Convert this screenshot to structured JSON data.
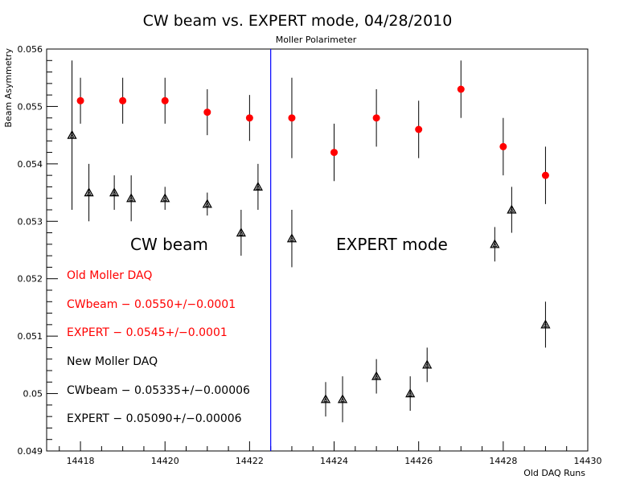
{
  "chart_data": {
    "type": "scatter",
    "title": "CW beam vs. EXPERT mode, 04/28/2010",
    "subtitle": "Moller Polarimeter",
    "xlabel": "Old DAQ Runs",
    "ylabel": "Beam Asymmetry",
    "xlim": [
      14417.2,
      14430
    ],
    "ylim": [
      0.049,
      0.056
    ],
    "x_ticks": [
      "14418",
      "14420",
      "14422",
      "14424",
      "14426",
      "14428",
      "14430"
    ],
    "y_ticks": [
      "0.049",
      "0.05",
      "0.051",
      "0.052",
      "0.053",
      "0.054",
      "0.055",
      "0.056"
    ],
    "x_tick_values": [
      14418,
      14420,
      14422,
      14424,
      14426,
      14428,
      14430
    ],
    "y_tick_values": [
      0.049,
      0.05,
      0.051,
      0.052,
      0.053,
      0.054,
      0.055,
      0.056
    ],
    "divider_x": 14422.5,
    "divider_color": "#0000ff",
    "series": [
      {
        "marker": "circle",
        "color": "#ff0000",
        "points": [
          {
            "x": 14418,
            "y": 0.0551,
            "err": 0.0004
          },
          {
            "x": 14419,
            "y": 0.0551,
            "err": 0.0004
          },
          {
            "x": 14420,
            "y": 0.0551,
            "err": 0.0004
          },
          {
            "x": 14421,
            "y": 0.0549,
            "err": 0.0004
          },
          {
            "x": 14422,
            "y": 0.0548,
            "err": 0.0004
          },
          {
            "x": 14423,
            "y": 0.0548,
            "err": 0.0007
          },
          {
            "x": 14424,
            "y": 0.0542,
            "err": 0.0005
          },
          {
            "x": 14425,
            "y": 0.0548,
            "err": 0.0005
          },
          {
            "x": 14426,
            "y": 0.0546,
            "err": 0.0005
          },
          {
            "x": 14427,
            "y": 0.0553,
            "err": 0.0005
          },
          {
            "x": 14428,
            "y": 0.0543,
            "err": 0.0005
          },
          {
            "x": 14429,
            "y": 0.0538,
            "err": 0.0005
          }
        ]
      },
      {
        "marker": "triangle",
        "color": "#000000",
        "points": [
          {
            "x": 14417.8,
            "y": 0.0545,
            "err": 0.0013
          },
          {
            "x": 14418.2,
            "y": 0.0535,
            "err": 0.0005
          },
          {
            "x": 14418.8,
            "y": 0.0535,
            "err": 0.0003
          },
          {
            "x": 14419.2,
            "y": 0.0534,
            "err": 0.0004
          },
          {
            "x": 14420,
            "y": 0.0534,
            "err": 0.0002
          },
          {
            "x": 14421,
            "y": 0.0533,
            "err": 0.0002
          },
          {
            "x": 14421.8,
            "y": 0.0528,
            "err": 0.0004
          },
          {
            "x": 14422.2,
            "y": 0.0536,
            "err": 0.0004
          },
          {
            "x": 14423,
            "y": 0.0527,
            "err": 0.0005
          },
          {
            "x": 14423.8,
            "y": 0.0499,
            "err": 0.0003
          },
          {
            "x": 14424.2,
            "y": 0.0499,
            "err": 0.0004
          },
          {
            "x": 14425,
            "y": 0.0503,
            "err": 0.0003
          },
          {
            "x": 14425.8,
            "y": 0.05,
            "err": 0.0003
          },
          {
            "x": 14426.2,
            "y": 0.0505,
            "err": 0.0003
          },
          {
            "x": 14427.8,
            "y": 0.0526,
            "err": 0.0003
          },
          {
            "x": 14428.2,
            "y": 0.0532,
            "err": 0.0004
          },
          {
            "x": 14429,
            "y": 0.0512,
            "err": 0.0004
          }
        ]
      }
    ],
    "region_labels": [
      "CW beam",
      "EXPERT mode"
    ],
    "annotations": {
      "old_daq": "Old Moller DAQ",
      "old_cw": "CWbeam − 0.0550+/−0.0001",
      "old_expert": "EXPERT − 0.0545+/−0.0001",
      "new_daq": "New Moller DAQ",
      "new_cw": "CWbeam − 0.05335+/−0.00006",
      "new_expert": "EXPERT − 0.05090+/−0.00006"
    },
    "colors": {
      "old": "#ff0000",
      "new": "#000000"
    }
  }
}
